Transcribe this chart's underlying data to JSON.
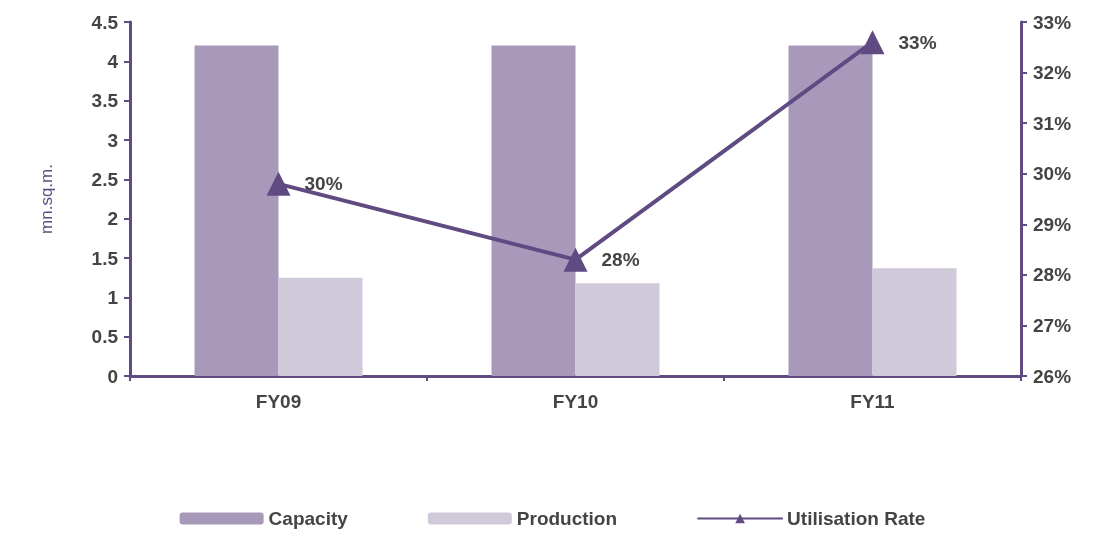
{
  "chart_data": {
    "type": "bar",
    "ylabel": "mn.sq.m.",
    "categories": [
      "FY09",
      "FY10",
      "FY11"
    ],
    "series": [
      {
        "name": "Capacity",
        "color": "#a899bb",
        "values": [
          4.2,
          4.2,
          4.2
        ]
      },
      {
        "name": "Production",
        "color": "#d0c9da",
        "values": [
          1.25,
          1.18,
          1.37
        ]
      },
      {
        "name": "Utilisation Rate",
        "type": "line",
        "axis": "y2",
        "color": "#5f4b82",
        "values": [
          29.8,
          28.3,
          32.6
        ],
        "value_labels": [
          "30%",
          "28%",
          "33%"
        ]
      }
    ],
    "ylim": [
      0,
      4.5
    ],
    "yticks": [
      0,
      0.5,
      1,
      1.5,
      2,
      2.5,
      3,
      3.5,
      4,
      4.5
    ],
    "y2lim": [
      26,
      33
    ],
    "y2ticks": [
      {
        "value": 26,
        "label": "26%"
      },
      {
        "value": 27,
        "label": "27%"
      },
      {
        "value": 28,
        "label": "28%"
      },
      {
        "value": 29,
        "label": "29%"
      },
      {
        "value": 30,
        "label": "30%"
      },
      {
        "value": 31,
        "label": "31%"
      },
      {
        "value": 32,
        "label": "32%"
      },
      {
        "value": 33,
        "label": "33%"
      }
    ],
    "legend": "bottom",
    "marker": "triangle",
    "line_style": "solid",
    "grid": false
  }
}
